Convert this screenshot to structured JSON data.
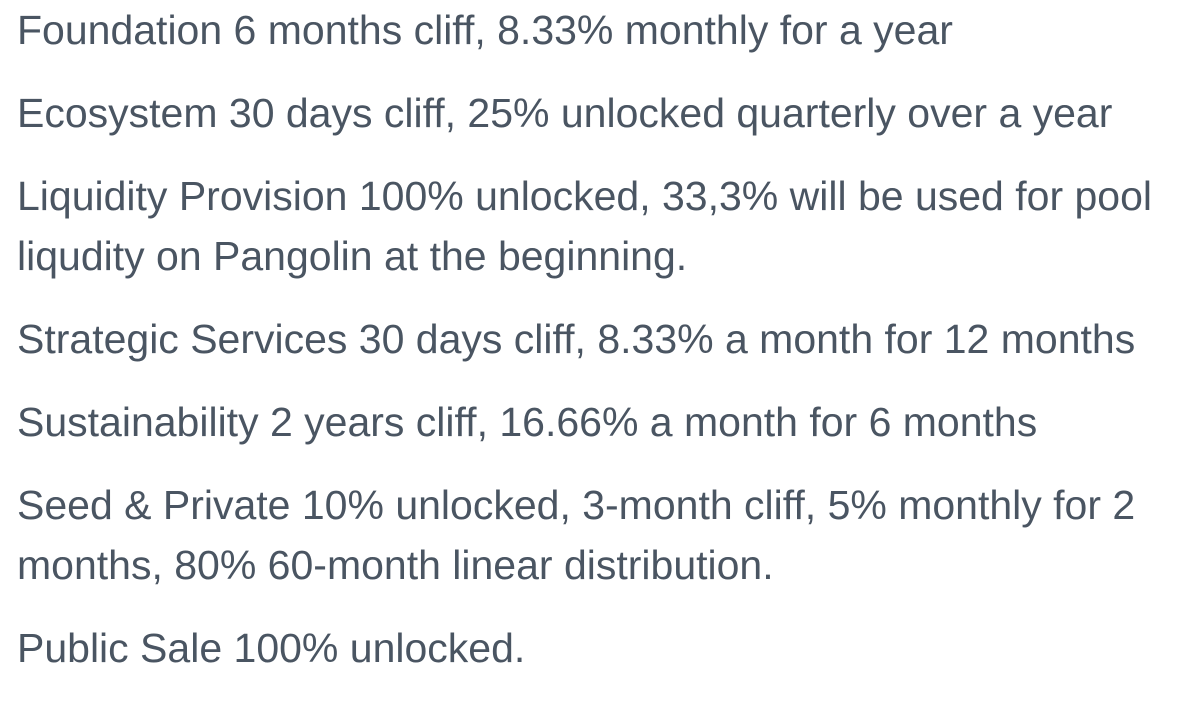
{
  "document": {
    "background_color": "#ffffff",
    "text_color": "#4a5562",
    "paragraphs": [
      {
        "name": "foundation-vesting",
        "lines": [
          "Foundation 6 months cliff, 8.33% monthly for a year"
        ]
      },
      {
        "name": "ecosystem-vesting",
        "lines": [
          "Ecosystem 30 days cliff, 25% unlocked quarterly over a year"
        ]
      },
      {
        "name": "liquidity-provision-vesting",
        "lines": [
          "Liquidity Provision 100% unlocked, 33,3% will be used for pool",
          "liqudity on Pangolin at the beginning."
        ]
      },
      {
        "name": "strategic-services-vesting",
        "lines": [
          "Strategic Services 30 days cliff, 8.33% a month for 12 months"
        ]
      },
      {
        "name": "sustainability-vesting",
        "lines": [
          "Sustainability 2 years cliff, 16.66% a month for 6 months"
        ]
      },
      {
        "name": "seed-private-vesting",
        "lines": [
          "Seed & Private 10% unlocked, 3-month cliff, 5% monthly for 2",
          "months, 80% 60-month linear distribution."
        ]
      },
      {
        "name": "public-sale-vesting",
        "lines": [
          "Public Sale 100% unlocked."
        ]
      }
    ]
  }
}
